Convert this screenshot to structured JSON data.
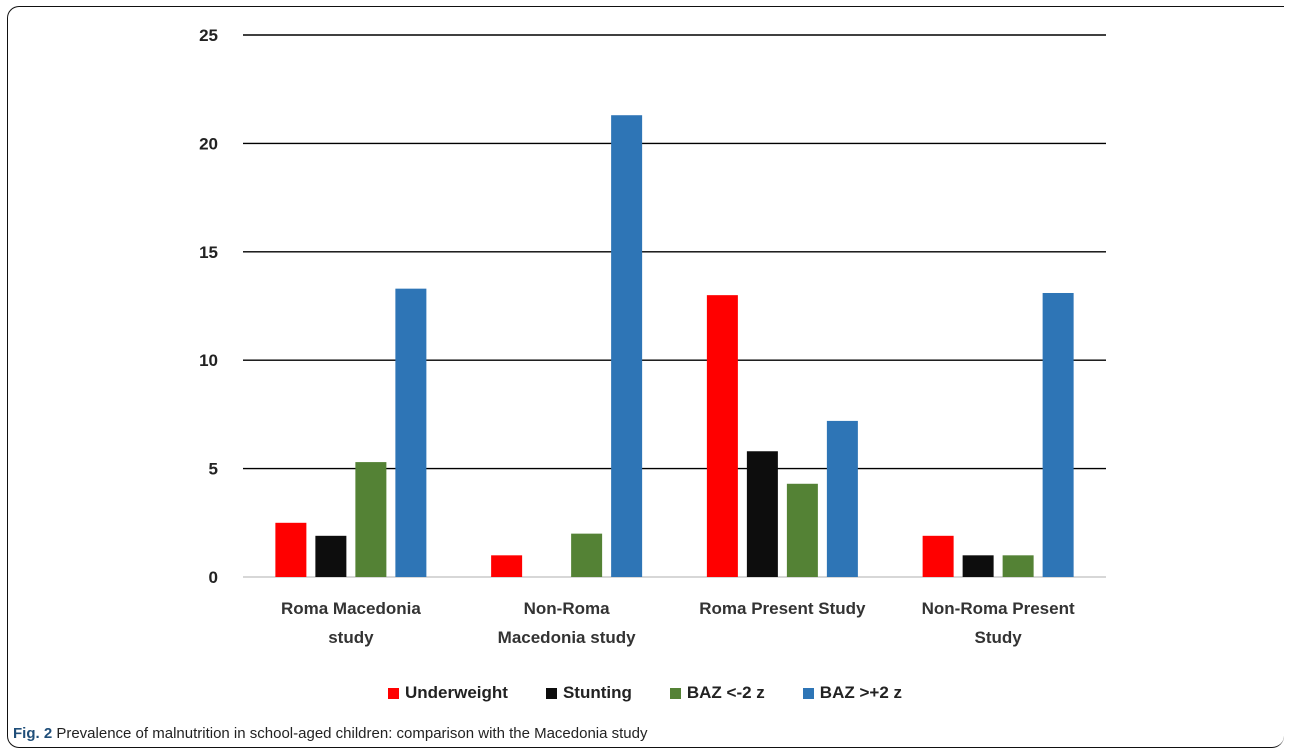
{
  "caption": {
    "label": "Fig. 2",
    "text": "Prevalence of malnutrition in school-aged children: comparison with the Macedonia study"
  },
  "chart_data": {
    "type": "bar",
    "categories": [
      [
        "Roma Macedonia",
        "study"
      ],
      [
        "Non-Roma",
        "Macedonia study"
      ],
      [
        "Roma Present Study"
      ],
      [
        "Non-Roma Present",
        "Study"
      ]
    ],
    "series": [
      {
        "name": "Underweight",
        "color": "#ff0000",
        "values": [
          2.5,
          1.0,
          13.0,
          1.9
        ]
      },
      {
        "name": "Stunting",
        "color": "#0d0d0d",
        "values": [
          1.9,
          0,
          5.8,
          1.0
        ]
      },
      {
        "name": "BAZ <-2 z",
        "color": "#548235",
        "values": [
          5.3,
          2.0,
          4.3,
          1.0
        ]
      },
      {
        "name": "BAZ >+2 z",
        "color": "#2e75b6",
        "values": [
          13.3,
          21.3,
          7.2,
          13.1
        ]
      }
    ],
    "ylim": [
      0,
      25
    ],
    "yticks": [
      0,
      5,
      10,
      15,
      20,
      25
    ],
    "grid": true,
    "legend_position": "bottom"
  }
}
